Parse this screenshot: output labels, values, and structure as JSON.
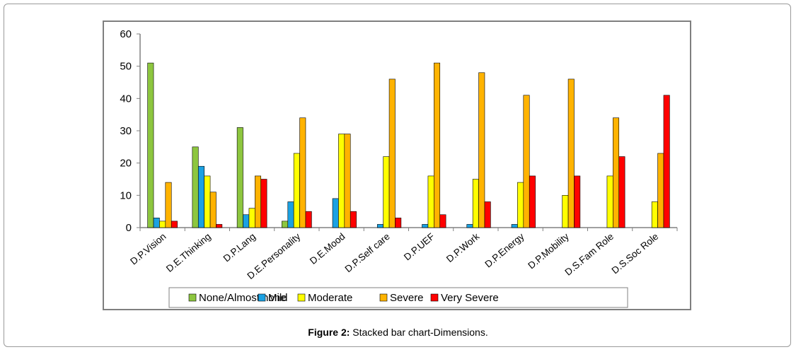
{
  "caption": {
    "label": "Figure 2:",
    "text": " Stacked bar chart-Dimensions."
  },
  "chart_data": {
    "type": "bar",
    "categories": [
      "D.P.Vision",
      "D.E.Thinking",
      "D.P.Lang",
      "D.E.Personality",
      "D.E.Mood",
      "D.P.Self care",
      "D.P.UEF",
      "D.P.Work",
      "D.P.Energy",
      "D.P.Mobility",
      "D.S.Fam Role",
      "D.S.Soc Role"
    ],
    "series": [
      {
        "name": "None/Almost none",
        "color": "#8dc63f",
        "values": [
          51,
          25,
          31,
          2,
          0,
          0,
          0,
          0,
          0,
          0,
          0,
          0
        ]
      },
      {
        "name": "Mild",
        "color": "#1ba1e2",
        "values": [
          3,
          19,
          4,
          8,
          9,
          1,
          1,
          1,
          1,
          0,
          0,
          0
        ]
      },
      {
        "name": "Moderate",
        "color": "#ffff00",
        "values": [
          2,
          16,
          6,
          23,
          29,
          22,
          16,
          15,
          14,
          10,
          16,
          8
        ]
      },
      {
        "name": "Severe",
        "color": "#ffb300",
        "values": [
          14,
          11,
          16,
          34,
          29,
          46,
          51,
          48,
          41,
          46,
          34,
          23
        ]
      },
      {
        "name": "Very Severe",
        "color": "#ff0000",
        "values": [
          2,
          1,
          15,
          5,
          5,
          3,
          4,
          8,
          16,
          16,
          22,
          41
        ]
      }
    ],
    "ylim": [
      0,
      60
    ],
    "yticks": [
      "0",
      "10",
      "20",
      "30",
      "40",
      "50",
      "60"
    ],
    "grid": false,
    "legend_position": "bottom"
  }
}
